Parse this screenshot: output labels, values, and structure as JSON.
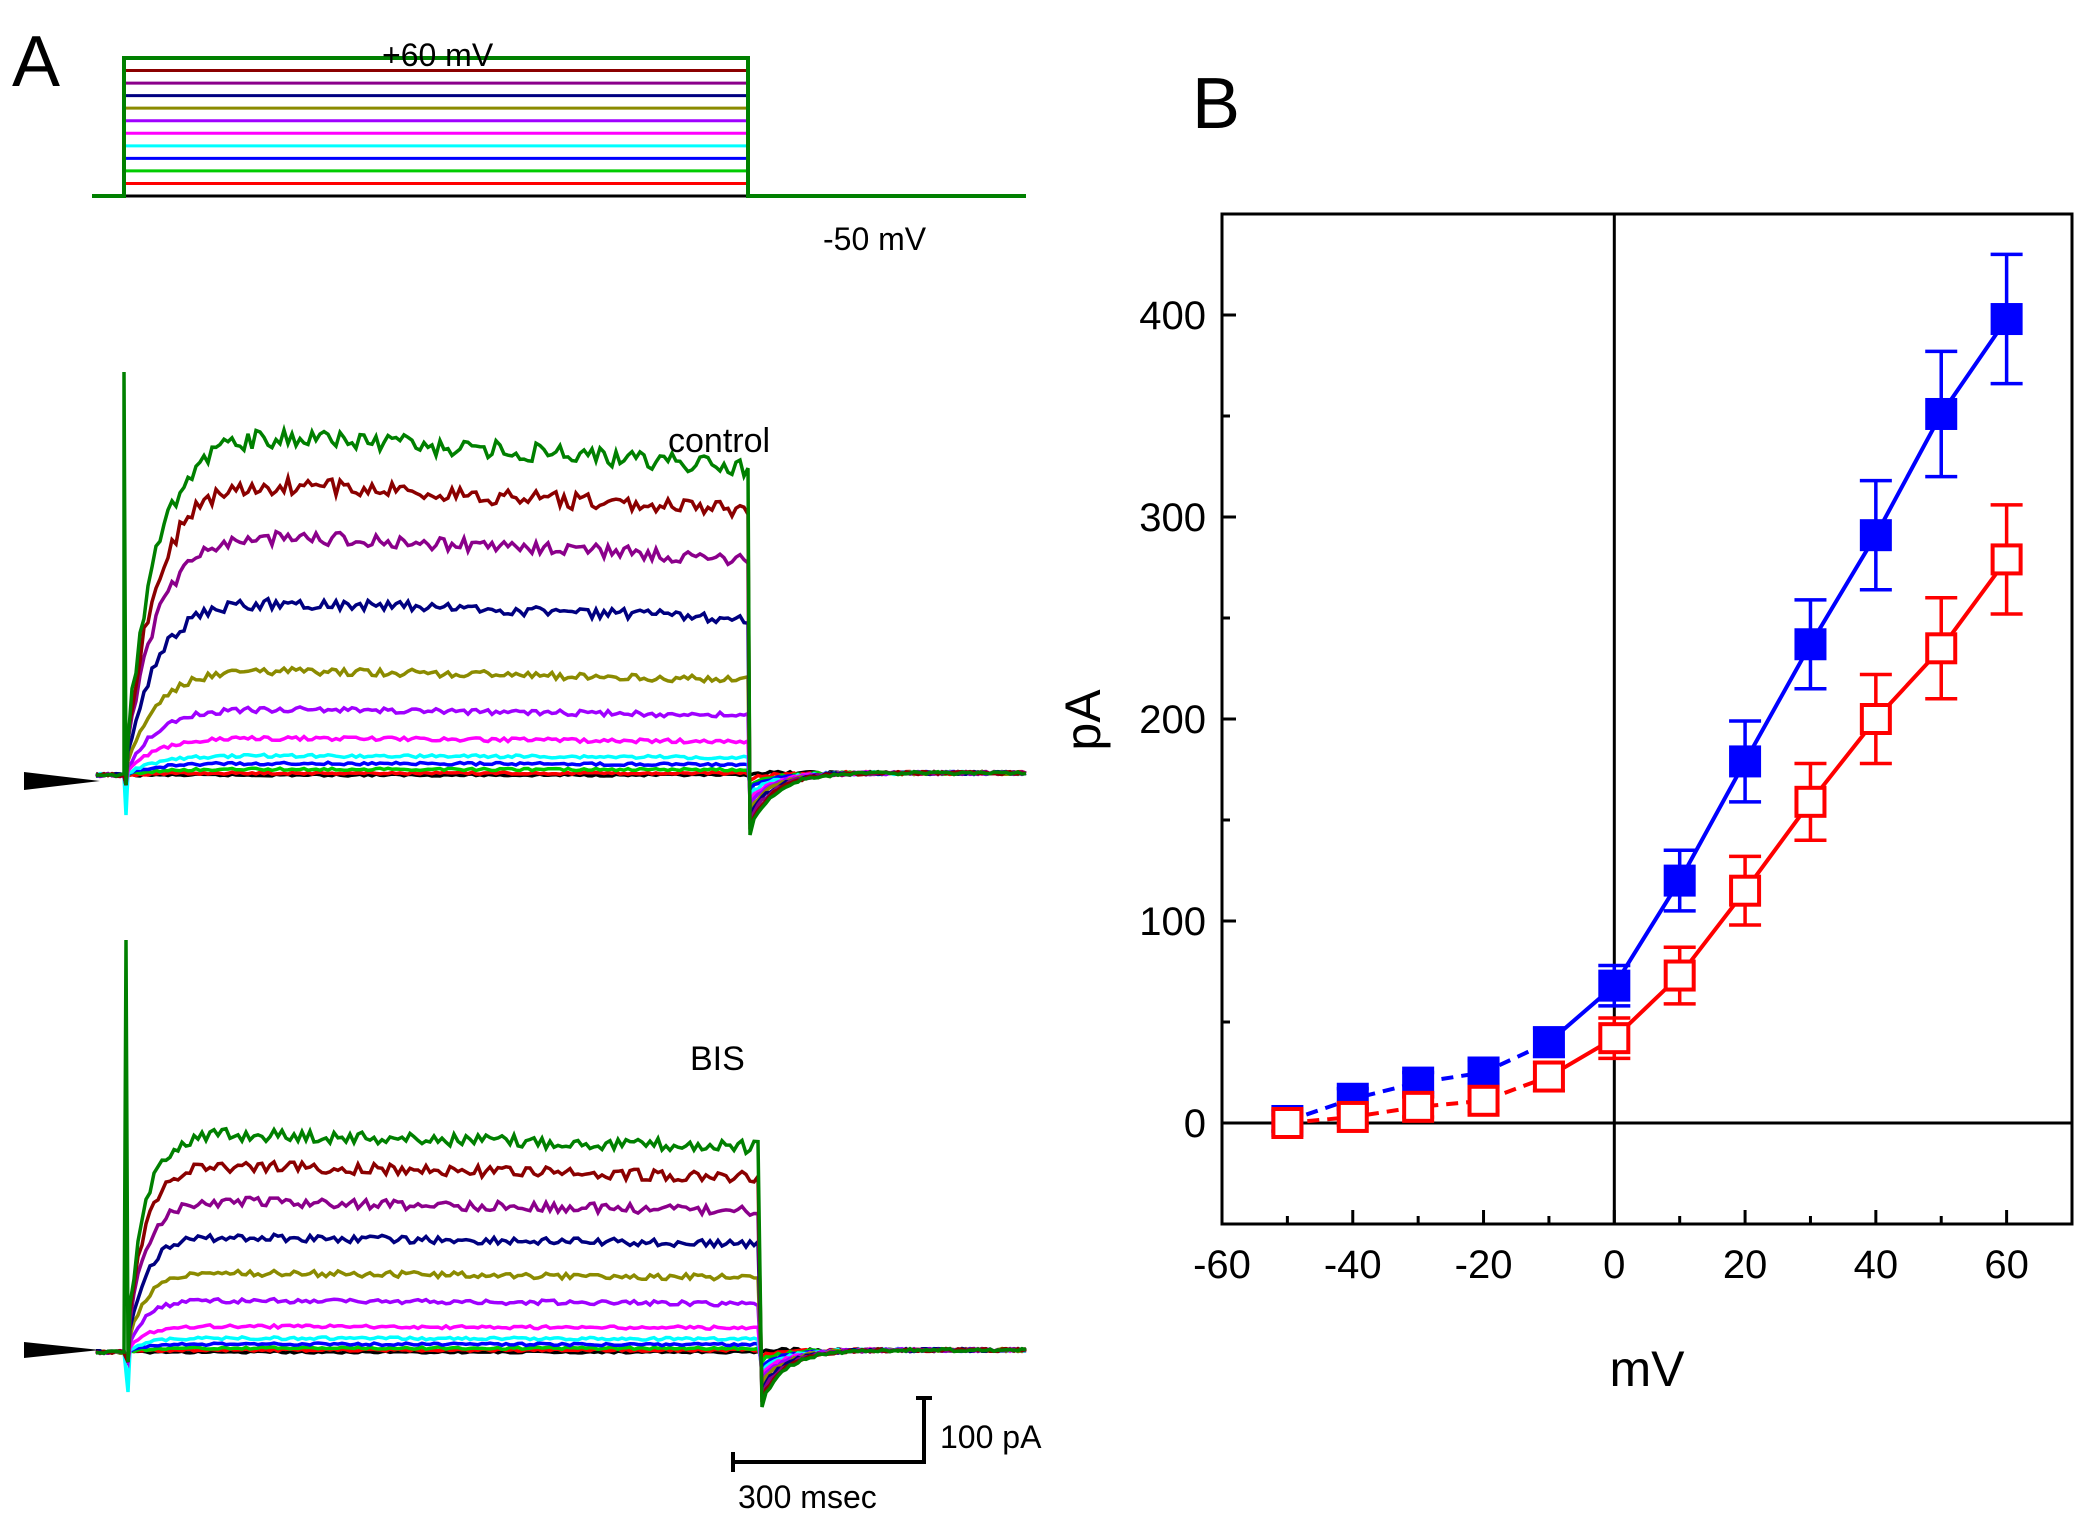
{
  "panel_a": {
    "label": "A",
    "protocol_top_label": "+60 mV",
    "protocol_hold_label": "-50 mV",
    "trace_labels": [
      "control",
      "BIS"
    ],
    "scalebar": {
      "current_label": "100 pA",
      "time_label": "300 msec",
      "current_pA": 100,
      "time_ms": 300
    },
    "step_colors": [
      "#000000",
      "#ff0000",
      "#00cc00",
      "#0000ff",
      "#00ffff",
      "#ff00ff",
      "#a000ff",
      "#8b8b00",
      "#000080",
      "#8b008b",
      "#8b0000",
      "#008000"
    ],
    "step_voltages_mV": [
      -50,
      -40,
      -30,
      -20,
      -10,
      0,
      10,
      20,
      30,
      40,
      50,
      60
    ]
  },
  "chart_data": {
    "type": "scatter",
    "panel_label": "B",
    "title": "",
    "xlabel": "mV",
    "ylabel": "pA",
    "xlim": [
      -60,
      70
    ],
    "ylim": [
      -50,
      450
    ],
    "xticks": [
      -60,
      -40,
      -20,
      0,
      20,
      40,
      60
    ],
    "xtick_labels": [
      "-60",
      "-40",
      "-20",
      "0",
      "20",
      "40",
      "60"
    ],
    "yticks": [
      0,
      100,
      200,
      300,
      400
    ],
    "ytick_labels": [
      "0",
      "100",
      "200",
      "300",
      "400"
    ],
    "x": [
      -50,
      -40,
      -30,
      -20,
      -10,
      0,
      10,
      20,
      30,
      40,
      50,
      60
    ],
    "series": [
      {
        "name": "control",
        "color": "#0000ff",
        "marker": "filled-square",
        "values": [
          1,
          12,
          20,
          25,
          40,
          68,
          120,
          179,
          237,
          291,
          351,
          398
        ],
        "errors": [
          5,
          5,
          5,
          6,
          7,
          10,
          15,
          20,
          22,
          27,
          31,
          32
        ]
      },
      {
        "name": "BIS",
        "color": "#ff0000",
        "marker": "open-square",
        "values": [
          0,
          3,
          8,
          11,
          23,
          42,
          73,
          115,
          159,
          200,
          235,
          279
        ],
        "errors": [
          4,
          4,
          5,
          5,
          7,
          10,
          14,
          17,
          19,
          22,
          25,
          27
        ]
      }
    ]
  }
}
